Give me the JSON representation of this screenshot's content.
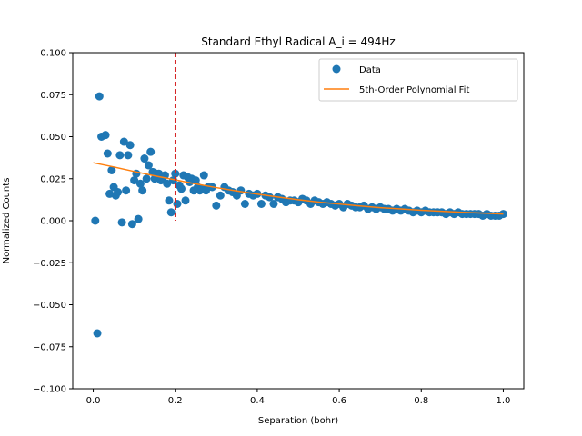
{
  "chart_data": {
    "type": "scatter",
    "title": "Standard Ethyl Radical A_i = 494Hz",
    "xlabel": "Separation (bohr)",
    "ylabel": "Normalized Counts",
    "xlim": [
      -0.05,
      1.05
    ],
    "ylim": [
      -0.1,
      0.1
    ],
    "xticks": [
      0.0,
      0.2,
      0.4,
      0.6,
      0.8,
      1.0
    ],
    "xtick_labels": [
      "0.0",
      "0.2",
      "0.4",
      "0.6",
      "0.8",
      "1.0"
    ],
    "yticks": [
      -0.1,
      -0.075,
      -0.05,
      -0.025,
      0.0,
      0.025,
      0.05,
      0.075,
      0.1
    ],
    "ytick_labels": [
      "−0.100",
      "−0.075",
      "−0.050",
      "−0.025",
      "0.000",
      "0.025",
      "0.050",
      "0.075",
      "0.100"
    ],
    "grid": false,
    "legend_position": "top-right",
    "vline": {
      "x": 0.2,
      "color": "#d62728",
      "style": "dashed"
    },
    "series": [
      {
        "name": "Data",
        "kind": "scatter",
        "color": "#1f77b4",
        "x": [
          0.005,
          0.01,
          0.015,
          0.02,
          0.03,
          0.035,
          0.04,
          0.045,
          0.05,
          0.055,
          0.06,
          0.065,
          0.07,
          0.075,
          0.08,
          0.085,
          0.09,
          0.095,
          0.1,
          0.105,
          0.11,
          0.115,
          0.12,
          0.125,
          0.13,
          0.135,
          0.14,
          0.145,
          0.15,
          0.155,
          0.16,
          0.165,
          0.17,
          0.175,
          0.18,
          0.185,
          0.19,
          0.195,
          0.2,
          0.205,
          0.21,
          0.215,
          0.22,
          0.225,
          0.23,
          0.235,
          0.24,
          0.245,
          0.25,
          0.255,
          0.26,
          0.265,
          0.27,
          0.275,
          0.28,
          0.29,
          0.3,
          0.31,
          0.32,
          0.33,
          0.34,
          0.35,
          0.36,
          0.37,
          0.38,
          0.39,
          0.4,
          0.41,
          0.42,
          0.43,
          0.44,
          0.45,
          0.46,
          0.47,
          0.48,
          0.49,
          0.5,
          0.51,
          0.52,
          0.53,
          0.54,
          0.55,
          0.56,
          0.57,
          0.58,
          0.59,
          0.6,
          0.61,
          0.62,
          0.63,
          0.64,
          0.65,
          0.66,
          0.67,
          0.68,
          0.69,
          0.7,
          0.71,
          0.72,
          0.73,
          0.74,
          0.75,
          0.76,
          0.77,
          0.78,
          0.79,
          0.8,
          0.81,
          0.82,
          0.83,
          0.84,
          0.85,
          0.86,
          0.87,
          0.88,
          0.89,
          0.9,
          0.91,
          0.92,
          0.93,
          0.94,
          0.95,
          0.96,
          0.97,
          0.98,
          0.99,
          1.0
        ],
        "y": [
          0.0,
          -0.067,
          0.074,
          0.05,
          0.051,
          0.04,
          0.016,
          0.03,
          0.02,
          0.015,
          0.017,
          0.039,
          -0.001,
          0.047,
          0.018,
          0.039,
          0.045,
          -0.002,
          0.024,
          0.028,
          0.001,
          0.022,
          0.018,
          0.037,
          0.025,
          0.033,
          0.041,
          0.029,
          0.025,
          0.028,
          0.028,
          0.024,
          0.026,
          0.027,
          0.022,
          0.012,
          0.005,
          0.024,
          0.028,
          0.01,
          0.021,
          0.019,
          0.027,
          0.012,
          0.026,
          0.023,
          0.025,
          0.018,
          0.024,
          0.02,
          0.018,
          0.019,
          0.027,
          0.018,
          0.02,
          0.02,
          0.009,
          0.015,
          0.02,
          0.018,
          0.017,
          0.015,
          0.018,
          0.01,
          0.016,
          0.015,
          0.016,
          0.01,
          0.015,
          0.014,
          0.01,
          0.014,
          0.013,
          0.011,
          0.012,
          0.012,
          0.011,
          0.013,
          0.012,
          0.01,
          0.012,
          0.011,
          0.01,
          0.011,
          0.01,
          0.009,
          0.01,
          0.008,
          0.01,
          0.009,
          0.008,
          0.008,
          0.009,
          0.007,
          0.008,
          0.007,
          0.008,
          0.007,
          0.007,
          0.006,
          0.007,
          0.006,
          0.007,
          0.006,
          0.005,
          0.006,
          0.005,
          0.006,
          0.005,
          0.005,
          0.005,
          0.005,
          0.004,
          0.005,
          0.004,
          0.005,
          0.004,
          0.004,
          0.004,
          0.004,
          0.004,
          0.003,
          0.004,
          0.003,
          0.003,
          0.003,
          0.004
        ]
      },
      {
        "name": "5th-Order Polynomial Fit",
        "kind": "line",
        "color": "#ff7f0e",
        "x": [
          0.0,
          0.05,
          0.1,
          0.15,
          0.2,
          0.25,
          0.3,
          0.35,
          0.4,
          0.45,
          0.5,
          0.55,
          0.6,
          0.65,
          0.7,
          0.75,
          0.8,
          0.85,
          0.9,
          0.95,
          1.0
        ],
        "y": [
          0.0345,
          0.032,
          0.0293,
          0.0267,
          0.0243,
          0.0219,
          0.0197,
          0.0177,
          0.0158,
          0.0141,
          0.0125,
          0.0111,
          0.0099,
          0.0088,
          0.0078,
          0.007,
          0.0062,
          0.0056,
          0.005,
          0.0045,
          0.004
        ]
      }
    ]
  }
}
